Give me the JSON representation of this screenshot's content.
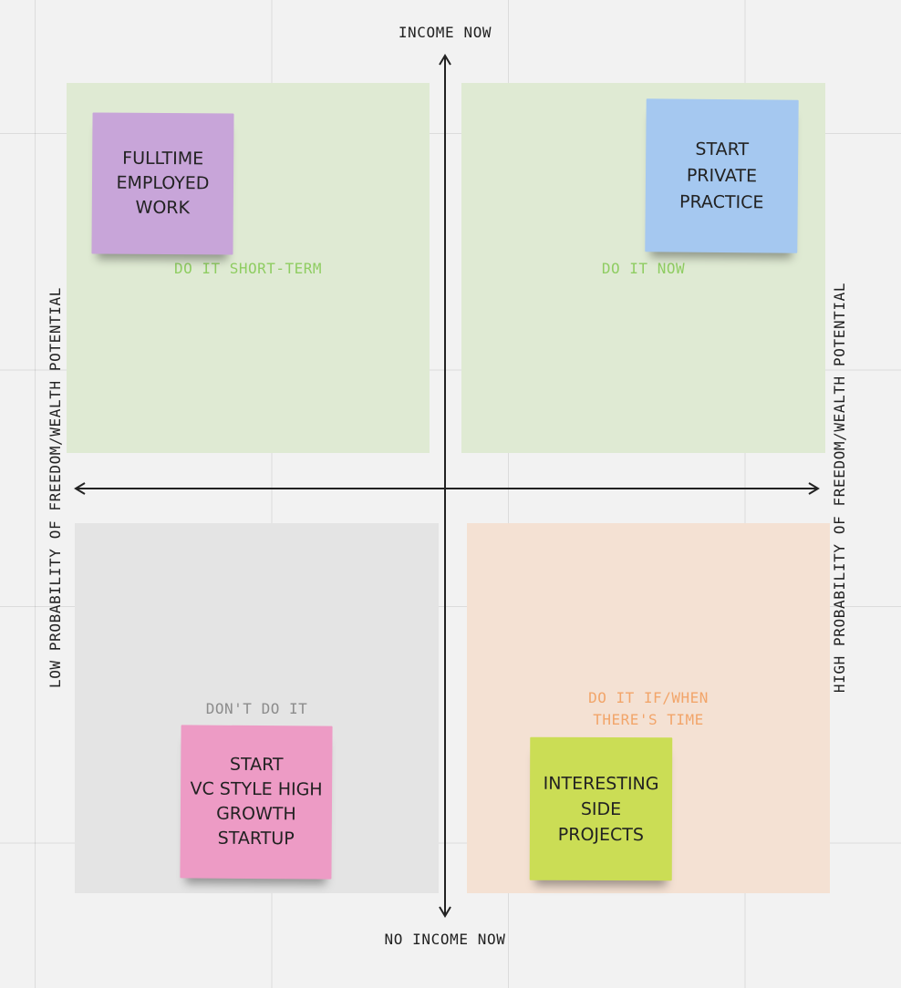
{
  "axes": {
    "y_top": "INCOME NOW",
    "y_bottom": "NO INCOME NOW",
    "x_left": "LOW PROBABILITY OF FREEDOM/WEALTH POTENTIAL",
    "x_right": "HIGH PROBABILITY OF FREEDOM/WEALTH POTENTIAL"
  },
  "quadrants": {
    "top_left": {
      "label": "DO IT SHORT-TERM",
      "color": "#dfead3",
      "label_color": "#8fcd62"
    },
    "top_right": {
      "label": "DO IT NOW",
      "color": "#dfead3",
      "label_color": "#8fcd62"
    },
    "bottom_left": {
      "label": "DON'T DO IT",
      "color": "#e4e4e4",
      "label_color": "#8c8c8c"
    },
    "bottom_right": {
      "label_line1": "DO IT IF/WHEN",
      "label_line2": "THERE'S TIME",
      "color": "#f4e1d3",
      "label_color": "#f2a56a"
    }
  },
  "notes": {
    "fulltime": {
      "lines": [
        "FULLTIME",
        "EMPLOYED",
        "WORK"
      ],
      "color": "#c8a5d9"
    },
    "private_practice": {
      "lines": [
        "START",
        "PRIVATE",
        "PRACTICE"
      ],
      "color": "#a5c8f0"
    },
    "vc_startup": {
      "lines": [
        "START",
        "VC STYLE HIGH",
        "GROWTH",
        "STARTUP"
      ],
      "color": "#ed9bc5"
    },
    "side_projects": {
      "lines": [
        "INTERESTING",
        "SIDE",
        "PROJECTS"
      ],
      "color": "#cbdd55"
    }
  }
}
